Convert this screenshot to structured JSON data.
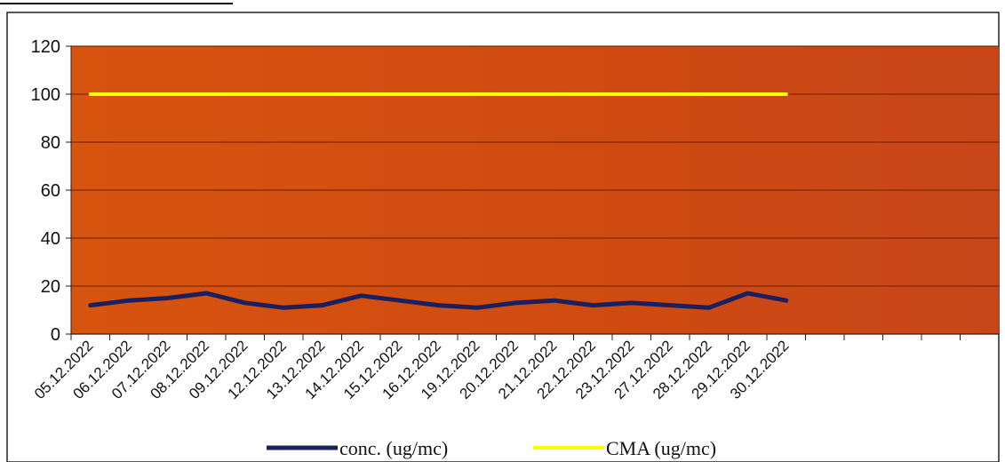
{
  "chart_data": {
    "type": "line",
    "categories": [
      "05.12.2022",
      "06.12.2022",
      "07.12.2022",
      "08.12.2022",
      "09.12.2022",
      "12.12.2022",
      "13.12.2022",
      "14.12.2022",
      "15.12.2022",
      "16.12.2022",
      "19.12.2022",
      "20.12.2022",
      "21.12.2022",
      "22.12.2022",
      "23.12.2022",
      "27.12.2022",
      "28.12.2022",
      "29.12.2022",
      "30.12.2022"
    ],
    "series": [
      {
        "name": "conc. (ug/mc)",
        "color": "#1a1f5e",
        "values": [
          12,
          14,
          15,
          17,
          13,
          11,
          12,
          16,
          14,
          12,
          11,
          13,
          14,
          12,
          13,
          12,
          11,
          17,
          14
        ]
      },
      {
        "name": "CMA (ug/mc)",
        "color": "#ffff00",
        "values": [
          100,
          100,
          100,
          100,
          100,
          100,
          100,
          100,
          100,
          100,
          100,
          100,
          100,
          100,
          100,
          100,
          100,
          100,
          100
        ]
      }
    ],
    "total_slots": 24,
    "ylim": [
      0,
      120
    ],
    "yticks": [
      0,
      20,
      40,
      60,
      80,
      100,
      120
    ],
    "grid": true,
    "legend_position": "bottom",
    "colors": {
      "plot_background": "#cf4b10",
      "gridline": "#7a2a08"
    }
  }
}
